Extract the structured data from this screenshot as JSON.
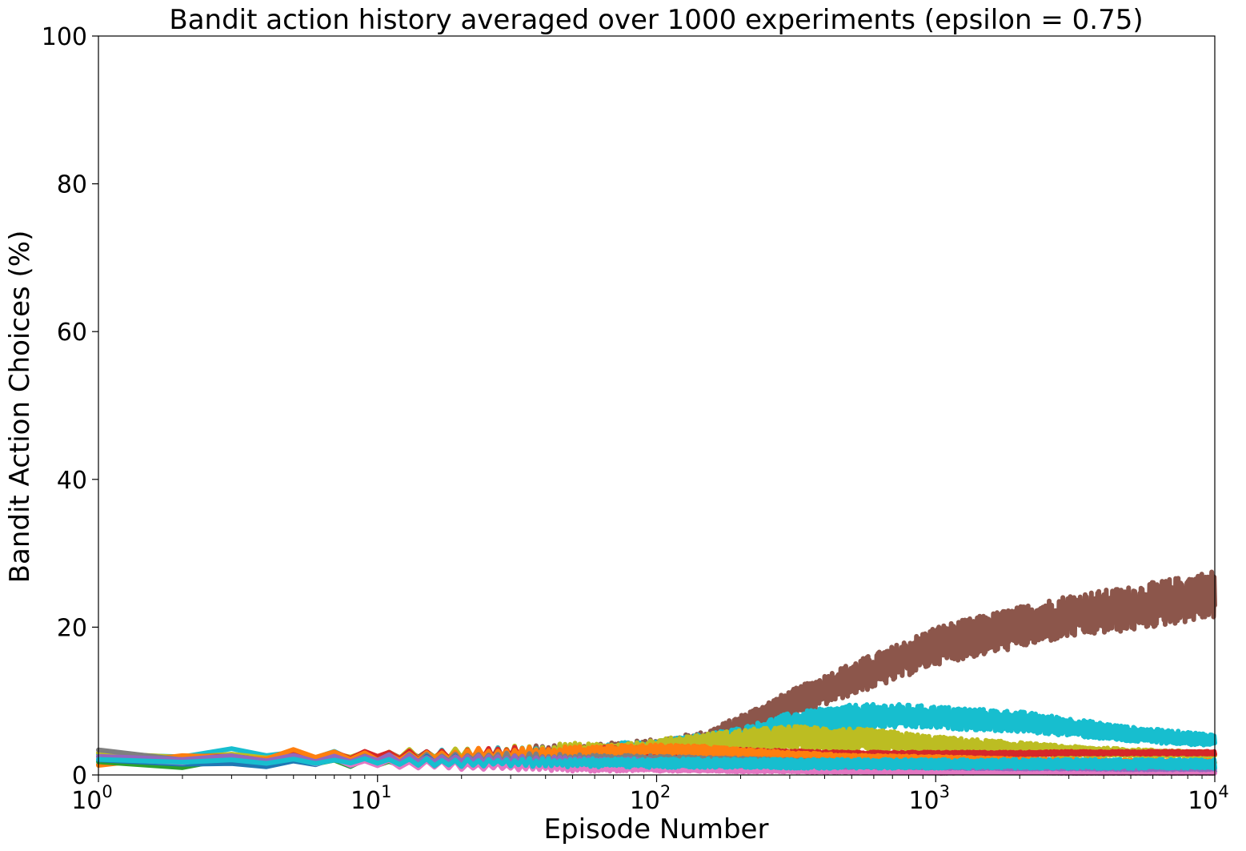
{
  "chart_data": {
    "type": "line",
    "title": "Bandit action history averaged over 1000 experiments (epsilon = 0.75)",
    "xlabel": "Episode Number",
    "ylabel": "Bandit Action Choices (%)",
    "xscale": "log",
    "xlim": [
      1,
      10000
    ],
    "ylim": [
      0,
      100
    ],
    "grid": false,
    "legend": "none",
    "x_ticks": [
      {
        "base": "10",
        "exp": "0",
        "value": 1
      },
      {
        "base": "10",
        "exp": "1",
        "value": 10
      },
      {
        "base": "10",
        "exp": "2",
        "value": 100
      },
      {
        "base": "10",
        "exp": "3",
        "value": 1000
      },
      {
        "base": "10",
        "exp": "4",
        "value": 10000
      }
    ],
    "y_ticks": [
      "0",
      "20",
      "40",
      "60",
      "80",
      "100"
    ],
    "x": [
      1,
      2,
      3,
      5,
      10,
      20,
      30,
      50,
      100,
      150,
      200,
      300,
      500,
      700,
      1000,
      2000,
      3000,
      5000,
      10000
    ],
    "series": [
      {
        "color": "#8c564b",
        "values": [
          2.2,
          2.6,
          2.4,
          2.5,
          2.6,
          2.8,
          3.0,
          3.2,
          3.6,
          4.5,
          6.5,
          9.5,
          13.0,
          15.0,
          17.5,
          20.0,
          21.5,
          22.5,
          24.5
        ],
        "noise": [
          0.3,
          0.3,
          0.3,
          0.4,
          0.5,
          0.7,
          0.8,
          1.0,
          1.2,
          1.4,
          1.6,
          1.9,
          2.2,
          2.4,
          2.6,
          2.8,
          2.9,
          3.0,
          3.2
        ]
      },
      {
        "color": "#17becf",
        "values": [
          2.5,
          2.8,
          3.2,
          2.8,
          2.5,
          2.6,
          2.8,
          3.0,
          3.4,
          4.3,
          5.0,
          6.8,
          7.8,
          8.0,
          7.8,
          7.2,
          6.5,
          5.5,
          4.7
        ],
        "noise": [
          0.5,
          0.4,
          0.5,
          0.5,
          0.7,
          0.9,
          1.0,
          1.1,
          1.2,
          1.3,
          1.4,
          1.6,
          1.7,
          1.6,
          1.5,
          1.4,
          1.2,
          1.0,
          0.8
        ]
      },
      {
        "color": "#bcbd22",
        "values": [
          2.8,
          2.5,
          2.6,
          2.4,
          2.8,
          2.7,
          2.9,
          3.1,
          3.5,
          4.2,
          4.6,
          5.0,
          4.8,
          4.5,
          4.0,
          3.5,
          3.2,
          3.0,
          2.8
        ],
        "noise": [
          0.3,
          0.3,
          0.4,
          0.5,
          0.7,
          0.9,
          1.0,
          1.2,
          1.3,
          1.4,
          1.5,
          1.6,
          1.5,
          1.4,
          1.2,
          0.9,
          0.7,
          0.5,
          0.3
        ]
      },
      {
        "color": "#d62728",
        "values": [
          1.2,
          2.7,
          2.3,
          2.5,
          2.8,
          2.6,
          3.0,
          3.0,
          3.1,
          3.0,
          3.0,
          2.9,
          2.8,
          2.8,
          2.8,
          2.9,
          3.0,
          3.0,
          3.0
        ],
        "noise": [
          0.3,
          0.3,
          0.4,
          0.5,
          0.7,
          0.8,
          0.8,
          0.8,
          0.7,
          0.6,
          0.5,
          0.4,
          0.3,
          0.3,
          0.3,
          0.2,
          0.2,
          0.2,
          0.2
        ]
      },
      {
        "color": "#ff7f0e",
        "values": [
          1.0,
          2.9,
          2.0,
          2.9,
          2.4,
          2.8,
          2.9,
          3.1,
          3.4,
          3.3,
          3.0,
          2.7,
          2.4,
          2.3,
          2.2,
          2.0,
          1.9,
          1.8,
          1.8
        ],
        "noise": [
          0.4,
          0.3,
          0.4,
          0.6,
          0.7,
          0.8,
          0.8,
          0.8,
          0.7,
          0.6,
          0.5,
          0.4,
          0.3,
          0.3,
          0.3,
          0.2,
          0.2,
          0.2,
          0.2
        ]
      },
      {
        "color": "#7f7f7f",
        "values": [
          3.1,
          2.2,
          1.8,
          2.2,
          2.1,
          2.3,
          2.3,
          2.2,
          2.1,
          2.0,
          1.9,
          1.8,
          1.6,
          1.5,
          1.4,
          1.3,
          1.2,
          1.2,
          1.1
        ],
        "noise": [
          0.3,
          0.3,
          0.4,
          0.5,
          0.6,
          0.7,
          0.7,
          0.6,
          0.5,
          0.4,
          0.4,
          0.3,
          0.3,
          0.3,
          0.2,
          0.2,
          0.2,
          0.2,
          0.2
        ]
      },
      {
        "color": "#2ca02c",
        "values": [
          1.5,
          1.1,
          1.9,
          1.8,
          1.6,
          1.7,
          1.6,
          1.5,
          1.4,
          1.3,
          1.2,
          1.1,
          1.0,
          0.9,
          0.8,
          0.7,
          0.6,
          0.6,
          0.5
        ],
        "noise": [
          0.3,
          0.3,
          0.4,
          0.5,
          0.6,
          0.6,
          0.6,
          0.5,
          0.4,
          0.4,
          0.3,
          0.3,
          0.3,
          0.2,
          0.2,
          0.2,
          0.2,
          0.1,
          0.1
        ]
      },
      {
        "color": "#1f77b4",
        "values": [
          1.8,
          1.6,
          1.4,
          1.6,
          1.9,
          2.0,
          1.8,
          1.6,
          1.4,
          1.2,
          1.1,
          1.0,
          0.9,
          0.8,
          0.7,
          0.6,
          0.6,
          0.5,
          0.5
        ],
        "noise": [
          0.3,
          0.3,
          0.4,
          0.5,
          0.6,
          0.6,
          0.6,
          0.5,
          0.4,
          0.3,
          0.3,
          0.3,
          0.2,
          0.2,
          0.2,
          0.2,
          0.1,
          0.1,
          0.1
        ]
      },
      {
        "color": "#e377c2",
        "values": [
          2.0,
          1.8,
          2.1,
          2.0,
          1.5,
          1.3,
          1.2,
          1.0,
          0.9,
          0.8,
          0.7,
          0.6,
          0.5,
          0.5,
          0.4,
          0.4,
          0.3,
          0.3,
          0.3
        ],
        "noise": [
          0.3,
          0.3,
          0.4,
          0.5,
          0.6,
          0.6,
          0.5,
          0.5,
          0.4,
          0.3,
          0.3,
          0.2,
          0.2,
          0.2,
          0.2,
          0.1,
          0.1,
          0.1,
          0.1
        ]
      },
      {
        "color": "#9467bd",
        "values": [
          2.4,
          2.3,
          2.2,
          2.3,
          2.2,
          2.1,
          2.0,
          1.9,
          1.7,
          1.6,
          1.5,
          1.4,
          1.3,
          1.2,
          1.1,
          1.0,
          1.0,
          0.9,
          0.9
        ],
        "noise": [
          0.3,
          0.3,
          0.4,
          0.5,
          0.6,
          0.6,
          0.6,
          0.5,
          0.4,
          0.4,
          0.3,
          0.3,
          0.3,
          0.2,
          0.2,
          0.2,
          0.2,
          0.2,
          0.2
        ]
      },
      {
        "color": "#17becf",
        "values": [
          1.9,
          1.9,
          1.9,
          1.8,
          1.8,
          1.7,
          1.7,
          1.6,
          1.6,
          1.6,
          1.6,
          1.5,
          1.5,
          1.5,
          1.5,
          1.5,
          1.5,
          1.5,
          1.5
        ],
        "noise": [
          0.3,
          0.3,
          0.3,
          0.4,
          0.5,
          0.6,
          0.6,
          0.6,
          0.6,
          0.6,
          0.6,
          0.6,
          0.6,
          0.6,
          0.6,
          0.6,
          0.6,
          0.6,
          0.6
        ]
      }
    ]
  }
}
